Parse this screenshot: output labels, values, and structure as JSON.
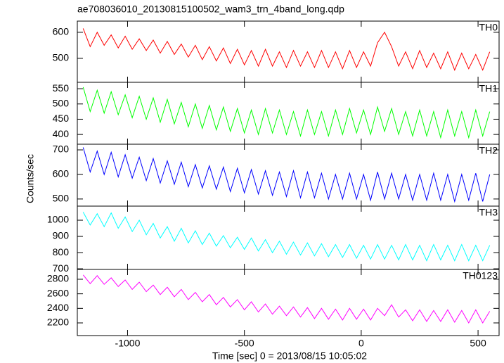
{
  "chart_data": {
    "type": "line",
    "title": "ae708036010_20130815100502_wam3_trn_4band_long.qdp",
    "x_label": "Time [sec] 0 = 2013/08/15 10:05:02",
    "y_label": "Counts/sec",
    "xlim": [
      -1215,
      590
    ],
    "xticks": [
      -1000,
      -500,
      0,
      500
    ],
    "x": [
      -1190,
      -1160,
      -1130,
      -1100,
      -1070,
      -1040,
      -1010,
      -980,
      -950,
      -920,
      -890,
      -860,
      -830,
      -800,
      -770,
      -740,
      -710,
      -680,
      -650,
      -620,
      -590,
      -560,
      -530,
      -500,
      -470,
      -440,
      -410,
      -380,
      -350,
      -320,
      -290,
      -260,
      -230,
      -200,
      -170,
      -140,
      -110,
      -80,
      -50,
      -20,
      10,
      40,
      70,
      100,
      130,
      160,
      190,
      220,
      250,
      280,
      310,
      340,
      370,
      400,
      430,
      460,
      490,
      520,
      550
    ],
    "series": [
      {
        "name": "TH0",
        "color": "#ff0000",
        "ylim": [
          408,
          643
        ],
        "yticks": [
          500,
          600
        ],
        "values": [
          615,
          545,
          600,
          550,
          590,
          540,
          585,
          535,
          575,
          530,
          570,
          520,
          565,
          515,
          555,
          505,
          550,
          495,
          545,
          490,
          540,
          480,
          535,
          475,
          530,
          470,
          535,
          470,
          525,
          465,
          530,
          470,
          525,
          465,
          530,
          465,
          525,
          460,
          530,
          465,
          525,
          470,
          560,
          600,
          545,
          470,
          525,
          460,
          530,
          465,
          520,
          460,
          525,
          455,
          520,
          460,
          515,
          455,
          525
        ]
      },
      {
        "name": "TH1",
        "color": "#00ff00",
        "ylim": [
          368,
          571
        ],
        "yticks": [
          400,
          450,
          500,
          550
        ],
        "values": [
          555,
          475,
          545,
          470,
          540,
          465,
          530,
          455,
          525,
          450,
          520,
          440,
          515,
          435,
          505,
          425,
          500,
          420,
          495,
          415,
          490,
          410,
          485,
          405,
          480,
          400,
          485,
          405,
          480,
          400,
          475,
          395,
          480,
          400,
          475,
          395,
          480,
          400,
          485,
          405,
          480,
          400,
          490,
          410,
          485,
          400,
          475,
          395,
          480,
          395,
          475,
          390,
          480,
          395,
          475,
          390,
          480,
          395,
          475
        ]
      },
      {
        "name": "TH2",
        "color": "#0000ff",
        "ylim": [
          471,
          723
        ],
        "yticks": [
          500,
          600,
          700
        ],
        "values": [
          710,
          610,
          695,
          600,
          690,
          590,
          680,
          585,
          670,
          575,
          665,
          565,
          655,
          560,
          650,
          550,
          640,
          545,
          635,
          540,
          630,
          530,
          625,
          525,
          620,
          520,
          615,
          515,
          610,
          510,
          615,
          505,
          610,
          505,
          605,
          500,
          600,
          500,
          605,
          500,
          600,
          495,
          610,
          500,
          605,
          500,
          600,
          495,
          600,
          495,
          605,
          495,
          600,
          490,
          600,
          495,
          605,
          490,
          600
        ]
      },
      {
        "name": "TH3",
        "color": "#00ffff",
        "ylim": [
          696,
          1087
        ],
        "yticks": [
          700,
          800,
          900,
          1000
        ],
        "values": [
          1050,
          970,
          1040,
          960,
          1045,
          950,
          1020,
          930,
          1000,
          910,
          980,
          890,
          960,
          870,
          950,
          860,
          935,
          850,
          920,
          840,
          905,
          830,
          895,
          820,
          890,
          810,
          880,
          800,
          870,
          790,
          865,
          785,
          860,
          780,
          855,
          775,
          850,
          770,
          850,
          765,
          845,
          760,
          850,
          760,
          845,
          755,
          850,
          755,
          845,
          750,
          850,
          755,
          845,
          750,
          850,
          750,
          845,
          750,
          845
        ]
      },
      {
        "name": "TH0123",
        "color": "#ff00ff",
        "ylim": [
          2026,
          2935
        ],
        "yticks": [
          2200,
          2400,
          2600,
          2800
        ],
        "values": [
          2860,
          2740,
          2850,
          2730,
          2820,
          2700,
          2790,
          2660,
          2760,
          2630,
          2720,
          2590,
          2690,
          2560,
          2660,
          2520,
          2620,
          2490,
          2590,
          2450,
          2550,
          2420,
          2520,
          2380,
          2490,
          2350,
          2460,
          2320,
          2430,
          2300,
          2420,
          2280,
          2410,
          2260,
          2400,
          2250,
          2390,
          2240,
          2400,
          2250,
          2390,
          2240,
          2400,
          2300,
          2450,
          2280,
          2380,
          2230,
          2380,
          2220,
          2370,
          2220,
          2380,
          2210,
          2370,
          2200,
          2380,
          2200,
          2360
        ]
      }
    ]
  }
}
